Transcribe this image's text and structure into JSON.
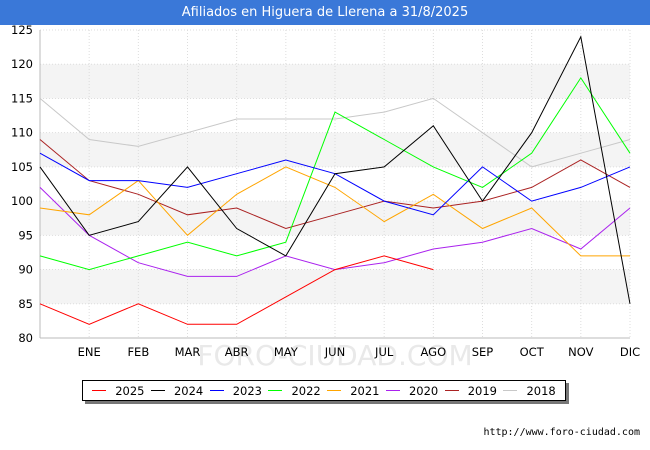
{
  "title": "Afiliados en Higuera de Llerena a 31/8/2025",
  "footer": "http://www.foro-ciudad.com",
  "watermark": "FORO-CIUDAD.COM",
  "chart_data": {
    "type": "line",
    "categories": [
      "",
      "ENE",
      "FEB",
      "MAR",
      "ABR",
      "MAY",
      "JUN",
      "JUL",
      "AGO",
      "SEP",
      "OCT",
      "NOV",
      "DIC"
    ],
    "ylim": [
      80,
      125
    ],
    "yticks": [
      80,
      85,
      90,
      95,
      100,
      105,
      110,
      115,
      120,
      125
    ],
    "grid": "horizontal",
    "legend_position": "bottom",
    "series": [
      {
        "name": "2025",
        "color": "#ff0000",
        "values": [
          85,
          82,
          85,
          82,
          82,
          86,
          90,
          92,
          90,
          null,
          null,
          null,
          null
        ]
      },
      {
        "name": "2024",
        "color": "#000000",
        "values": [
          105,
          95,
          97,
          105,
          96,
          92,
          104,
          105,
          111,
          100,
          110,
          124,
          85
        ]
      },
      {
        "name": "2023",
        "color": "#0000ff",
        "values": [
          107,
          103,
          103,
          102,
          104,
          106,
          104,
          100,
          98,
          105,
          100,
          102,
          105
        ]
      },
      {
        "name": "2022",
        "color": "#00ff00",
        "values": [
          92,
          90,
          92,
          94,
          92,
          94,
          113,
          109,
          105,
          102,
          107,
          118,
          107
        ]
      },
      {
        "name": "2021",
        "color": "#ffa500",
        "values": [
          99,
          98,
          103,
          95,
          101,
          105,
          102,
          97,
          101,
          96,
          99,
          92,
          92
        ]
      },
      {
        "name": "2020",
        "color": "#aa22ee",
        "values": [
          102,
          95,
          91,
          89,
          89,
          92,
          90,
          91,
          93,
          94,
          96,
          93,
          99
        ]
      },
      {
        "name": "2019",
        "color": "#aa2222",
        "values": [
          109,
          103,
          101,
          98,
          99,
          96,
          98,
          100,
          99,
          100,
          102,
          106,
          102
        ]
      },
      {
        "name": "2018",
        "color": "#c8c8c8",
        "values": [
          115,
          109,
          108,
          110,
          112,
          112,
          112,
          113,
          115,
          110,
          105,
          107,
          109
        ]
      }
    ]
  }
}
